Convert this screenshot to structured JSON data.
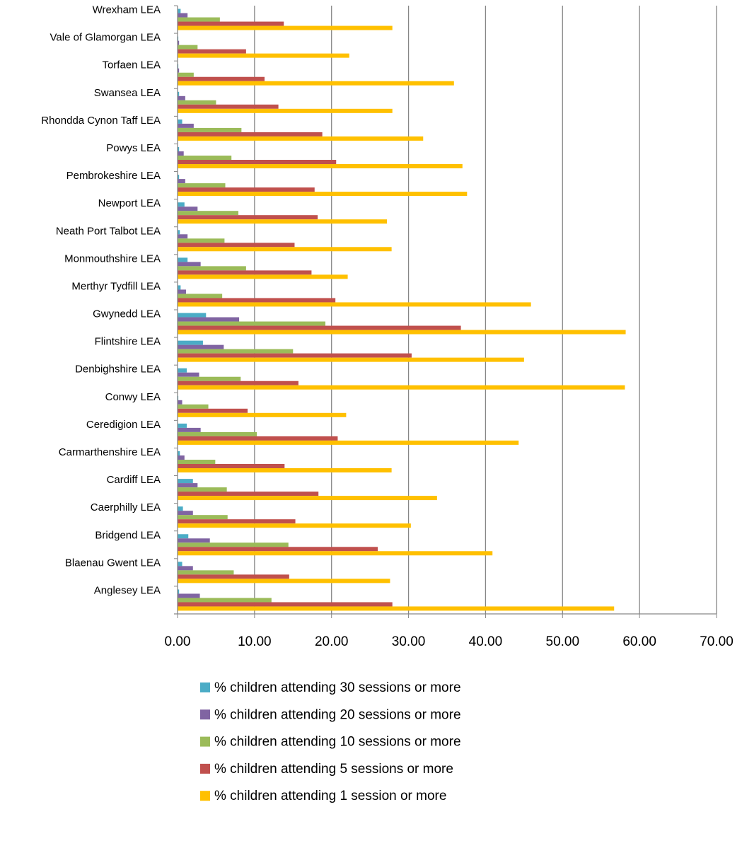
{
  "chart_data": {
    "type": "bar",
    "orientation": "horizontal",
    "title": "",
    "xlabel": "",
    "ylabel": "",
    "xlim": [
      0,
      70
    ],
    "x_ticks": [
      "0.00",
      "10.00",
      "20.00",
      "30.00",
      "40.00",
      "50.00",
      "60.00",
      "70.00"
    ],
    "grid": "vertical major gridlines",
    "legend_position": "bottom",
    "categories": [
      "Anglesey LEA",
      "Blaenau Gwent LEA",
      "Bridgend LEA",
      "Caerphilly LEA",
      "Cardiff LEA",
      "Carmarthenshire LEA",
      "Ceredigion LEA",
      "Conwy LEA",
      "Denbighshire LEA",
      "Flintshire LEA",
      "Gwynedd LEA",
      "Merthyr Tydfill LEA",
      "Monmouthshire LEA",
      "Neath Port Talbot LEA",
      "Newport LEA",
      "Pembrokeshire LEA",
      "Powys LEA",
      "Rhondda Cynon Taff LEA",
      "Swansea LEA",
      "Torfaen LEA",
      "Vale of Glamorgan LEA",
      "Wrexham LEA"
    ],
    "series": [
      {
        "name": "% children attending 30 sessions or more",
        "color": "#4BACC6",
        "values": [
          0.2,
          0.6,
          1.4,
          0.7,
          2.0,
          0.3,
          1.2,
          0.1,
          1.2,
          3.3,
          3.7,
          0.4,
          1.3,
          0.3,
          0.9,
          0.2,
          0.2,
          0.6,
          0.2,
          0.1,
          0.1,
          0.4
        ]
      },
      {
        "name": "% children attending 20 sessions or more",
        "color": "#8064A2",
        "values": [
          2.9,
          2.0,
          4.2,
          2.0,
          2.6,
          0.9,
          3.0,
          0.6,
          2.8,
          6.0,
          8.0,
          1.1,
          3.0,
          1.3,
          2.6,
          1.0,
          0.8,
          2.1,
          1.0,
          0.2,
          0.2,
          1.3
        ]
      },
      {
        "name": "% children attending 10 sessions or more",
        "color": "#9BBB59",
        "values": [
          12.2,
          7.3,
          14.4,
          6.5,
          6.4,
          4.9,
          10.3,
          4.0,
          8.2,
          15.0,
          19.2,
          5.8,
          8.9,
          6.1,
          7.9,
          6.2,
          7.0,
          8.3,
          5.0,
          2.1,
          2.6,
          5.5
        ]
      },
      {
        "name": "% children attending 5 sessions or more",
        "color": "#C0504D",
        "values": [
          27.9,
          14.5,
          26.0,
          15.3,
          18.3,
          13.9,
          20.8,
          9.1,
          15.7,
          30.4,
          36.8,
          20.5,
          17.4,
          15.2,
          18.2,
          17.8,
          20.6,
          18.8,
          13.1,
          11.3,
          8.9,
          13.8
        ]
      },
      {
        "name": "% children attending 1 session or more",
        "color": "#FFC000",
        "values": [
          56.7,
          27.6,
          40.9,
          30.3,
          33.7,
          27.8,
          44.3,
          21.9,
          58.1,
          45.0,
          58.2,
          45.9,
          22.1,
          27.8,
          27.2,
          37.6,
          37.0,
          31.9,
          27.9,
          35.9,
          22.3,
          27.9
        ]
      }
    ]
  }
}
